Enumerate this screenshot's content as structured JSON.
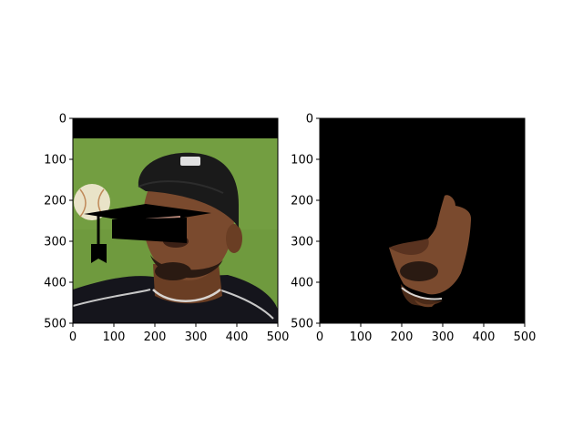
{
  "figure": {
    "background": "#ffffff",
    "panels": [
      {
        "name": "left-panel",
        "content": "photo-with-graduation-cap-overlay",
        "x_ticks": [
          "0",
          "100",
          "200",
          "300",
          "400",
          "500"
        ],
        "y_ticks": [
          "0",
          "100",
          "200",
          "300",
          "400",
          "500"
        ],
        "xlim": [
          0,
          500
        ],
        "ylim": [
          500,
          0
        ]
      },
      {
        "name": "right-panel",
        "content": "segmented-face-on-black",
        "x_ticks": [
          "0",
          "100",
          "200",
          "300",
          "400",
          "500"
        ],
        "y_ticks": [
          "0",
          "100",
          "200",
          "300",
          "400",
          "500"
        ],
        "xlim": [
          0,
          500
        ],
        "ylim": [
          500,
          0
        ]
      }
    ],
    "colors": {
      "grass": "#6f9a3e",
      "black_bar": "#000000",
      "skin": "#7a4a2e",
      "skin_dark": "#4a2a18",
      "cap": "#1a1a1a",
      "jersey": "#15151c",
      "ball": "#e9e3c8",
      "grad_cap": "#000000"
    }
  }
}
